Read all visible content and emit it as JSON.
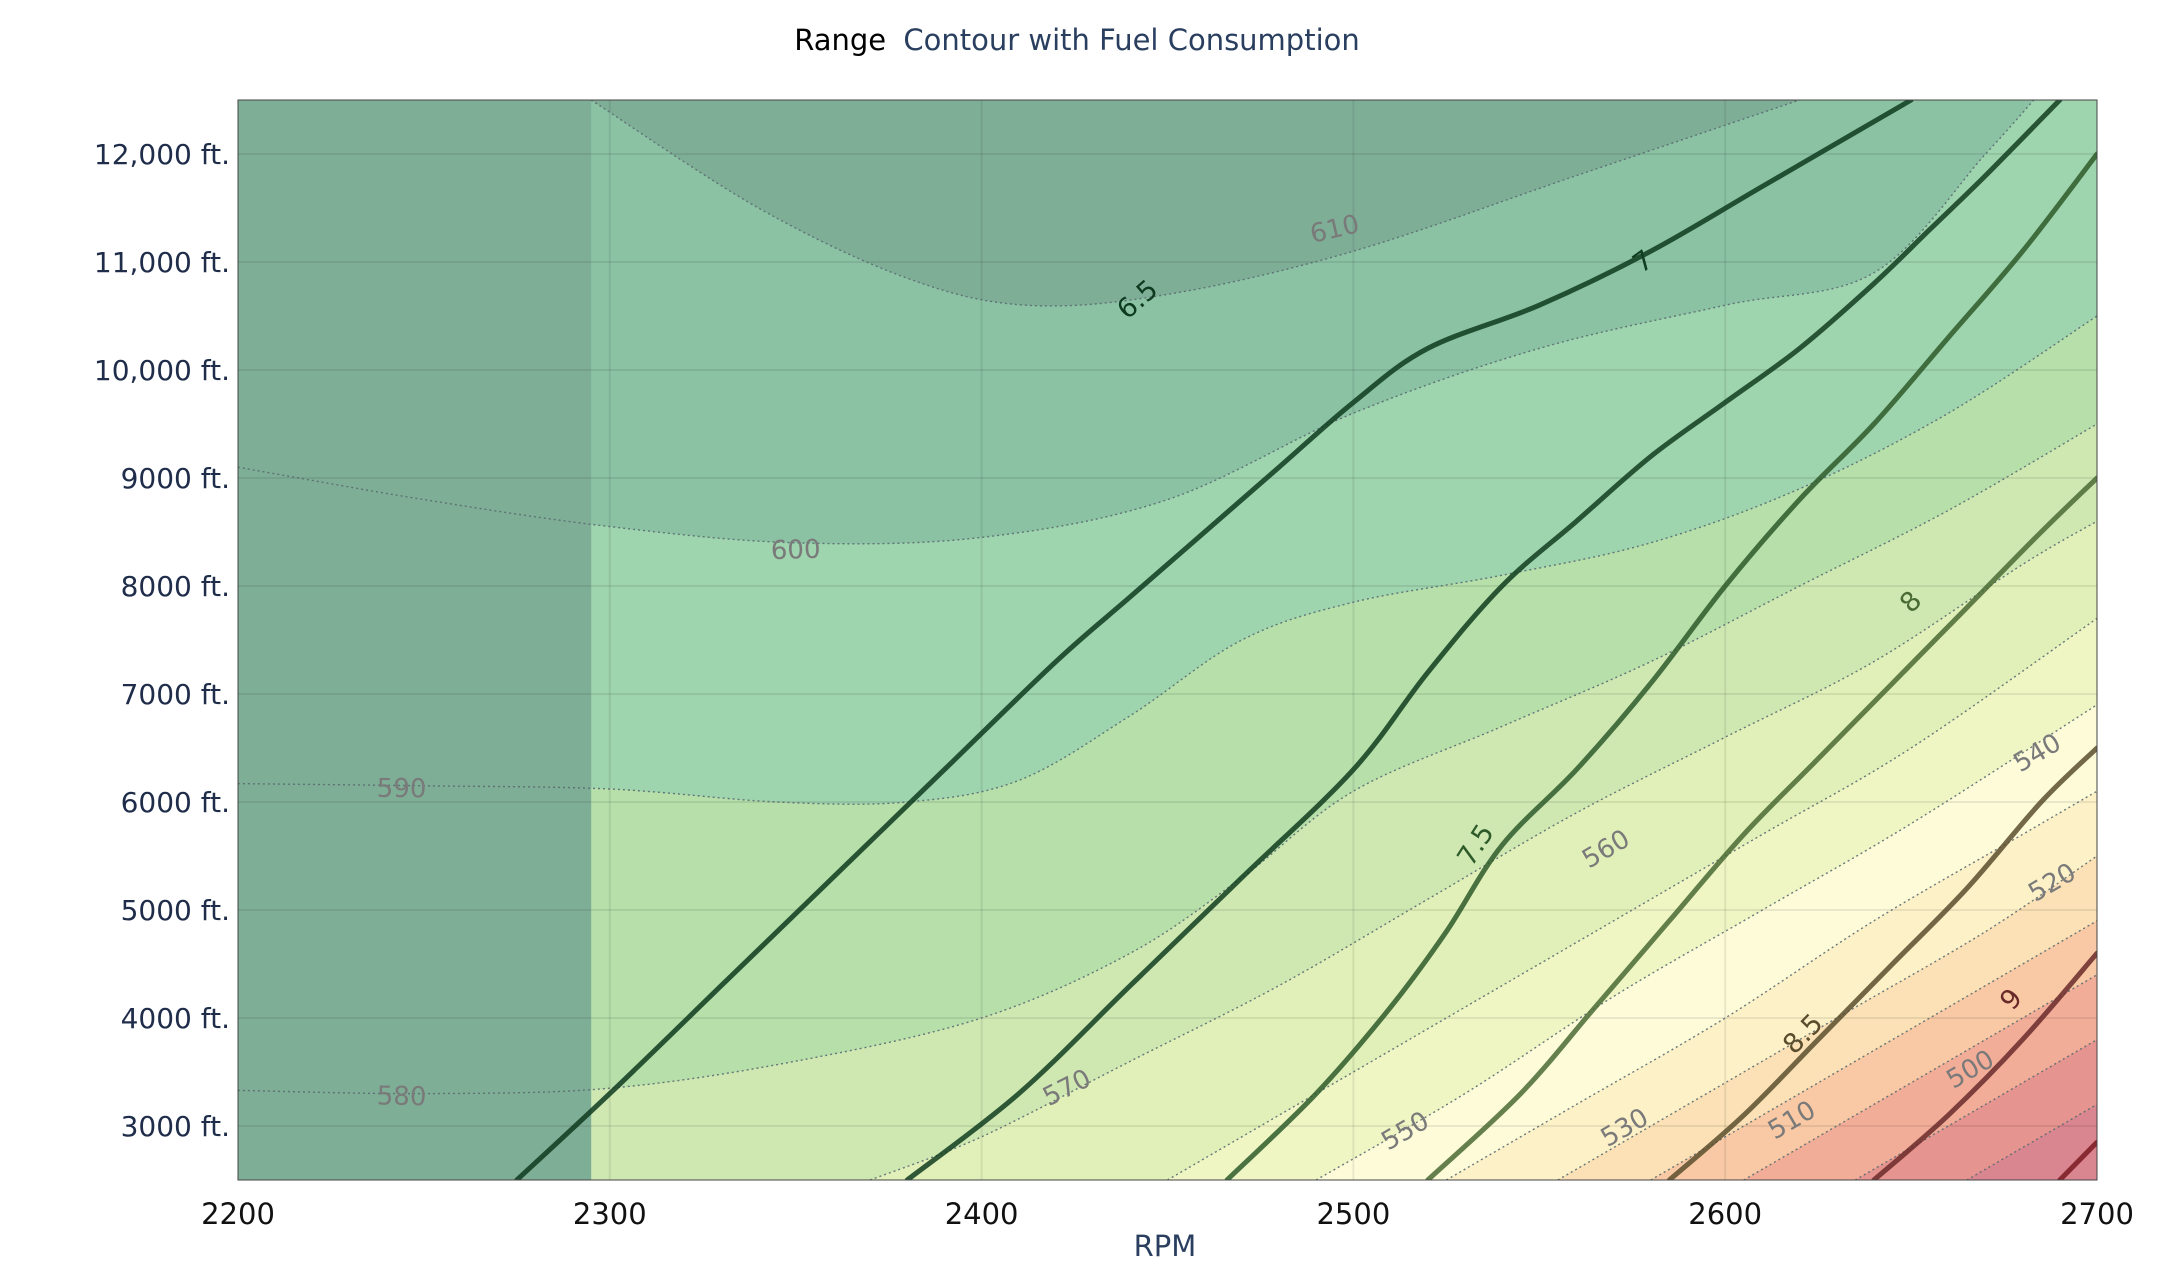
{
  "chart_data": {
    "type": "contour",
    "title": {
      "bold": "Range",
      "rest": "Contour with Fuel Consumption"
    },
    "xlabel": "RPM",
    "ylabel": "",
    "xlim": [
      2200,
      2700
    ],
    "ylim": [
      2500,
      12500
    ],
    "x_ticks": [
      {
        "value": 2200,
        "label": "2200"
      },
      {
        "value": 2300,
        "label": "2300"
      },
      {
        "value": 2400,
        "label": "2400"
      },
      {
        "value": 2500,
        "label": "2500"
      },
      {
        "value": 2600,
        "label": "2600"
      },
      {
        "value": 2700,
        "label": "2700"
      }
    ],
    "y_ticks": [
      {
        "value": 3000,
        "label": "3000 ft."
      },
      {
        "value": 4000,
        "label": "4000 ft."
      },
      {
        "value": 5000,
        "label": "5000 ft."
      },
      {
        "value": 6000,
        "label": "6000 ft."
      },
      {
        "value": 7000,
        "label": "7000 ft."
      },
      {
        "value": 8000,
        "label": "8000 ft."
      },
      {
        "value": 9000,
        "label": "9000 ft."
      },
      {
        "value": 10000,
        "label": "10,000 ft."
      },
      {
        "value": 11000,
        "label": "11,000 ft."
      },
      {
        "value": 12000,
        "label": "12,000 ft."
      }
    ],
    "grid": true,
    "range_contours": [
      {
        "level": 610,
        "label": "610",
        "label_at": [
          2495,
          11300
        ],
        "fill": "#7fae97",
        "points": [
          [
            2295,
            12500
          ],
          [
            2340,
            11500
          ],
          [
            2380,
            10850
          ],
          [
            2412,
            10600
          ],
          [
            2450,
            10700
          ],
          [
            2500,
            11100
          ],
          [
            2560,
            11800
          ],
          [
            2620,
            12500
          ]
        ]
      },
      {
        "level": 600,
        "label": "600",
        "label_at": [
          2350,
          8330
        ],
        "fill": "#8bc2a4",
        "points": [
          [
            2200,
            9100
          ],
          [
            2250,
            8800
          ],
          [
            2300,
            8550
          ],
          [
            2350,
            8400
          ],
          [
            2400,
            8450
          ],
          [
            2450,
            8800
          ],
          [
            2500,
            9600
          ],
          [
            2550,
            10200
          ],
          [
            2600,
            10600
          ],
          [
            2640,
            10900
          ],
          [
            2670,
            12000
          ],
          [
            2683,
            12500
          ]
        ]
      },
      {
        "level": 590,
        "label": "590",
        "label_at": [
          2244,
          6120
        ],
        "fill": "#9ed4ae",
        "points": [
          [
            2200,
            6170
          ],
          [
            2250,
            6150
          ],
          [
            2300,
            6120
          ],
          [
            2345,
            6000
          ],
          [
            2380,
            6000
          ],
          [
            2410,
            6200
          ],
          [
            2440,
            6800
          ],
          [
            2470,
            7500
          ],
          [
            2500,
            7850
          ],
          [
            2540,
            8100
          ],
          [
            2580,
            8400
          ],
          [
            2620,
            8900
          ],
          [
            2660,
            9600
          ],
          [
            2700,
            10500
          ]
        ]
      },
      {
        "level": 580,
        "label": "580",
        "label_at": [
          2244,
          3270
        ],
        "fill": "#b6dfaa",
        "points": [
          [
            2200,
            3330
          ],
          [
            2250,
            3300
          ],
          [
            2300,
            3350
          ],
          [
            2350,
            3600
          ],
          [
            2400,
            4000
          ],
          [
            2440,
            4600
          ],
          [
            2470,
            5300
          ],
          [
            2500,
            6100
          ],
          [
            2540,
            6700
          ],
          [
            2580,
            7300
          ],
          [
            2620,
            8000
          ],
          [
            2660,
            8700
          ],
          [
            2700,
            9500
          ]
        ]
      },
      {
        "level": 570,
        "label": "570",
        "label_at": [
          2423,
          3350
        ],
        "fill": "#cfe8b2",
        "points": [
          [
            2370,
            2500
          ],
          [
            2400,
            2900
          ],
          [
            2440,
            3600
          ],
          [
            2480,
            4300
          ],
          [
            2520,
            5100
          ],
          [
            2560,
            5900
          ],
          [
            2600,
            6600
          ],
          [
            2640,
            7300
          ],
          [
            2680,
            8200
          ],
          [
            2700,
            8600
          ]
        ]
      },
      {
        "level": 560,
        "label": "560",
        "label_at": [
          2568,
          5560
        ],
        "fill": "#e1f0b8",
        "points": [
          [
            2450,
            2500
          ],
          [
            2490,
            3300
          ],
          [
            2530,
            4100
          ],
          [
            2570,
            4900
          ],
          [
            2610,
            5700
          ],
          [
            2650,
            6500
          ],
          [
            2700,
            7700
          ]
        ]
      },
      {
        "level": 550,
        "label": "550",
        "label_at": [
          2514,
          2950
        ],
        "fill": "#eff6c4",
        "points": [
          [
            2490,
            2500
          ],
          [
            2530,
            3300
          ],
          [
            2570,
            4200
          ],
          [
            2610,
            5000
          ],
          [
            2650,
            5800
          ],
          [
            2700,
            6900
          ]
        ]
      },
      {
        "level": 540,
        "label": "540",
        "label_at": [
          2684,
          6450
        ],
        "fill": "#fdfbd8",
        "points": [
          [
            2525,
            2500
          ],
          [
            2560,
            3200
          ],
          [
            2600,
            4000
          ],
          [
            2640,
            4900
          ],
          [
            2680,
            5700
          ],
          [
            2700,
            6100
          ]
        ]
      },
      {
        "level": 530,
        "label": "530",
        "label_at": [
          2573,
          2980
        ],
        "fill": "#fdf1c8",
        "points": [
          [
            2555,
            2500
          ],
          [
            2590,
            3200
          ],
          [
            2630,
            4000
          ],
          [
            2670,
            4800
          ],
          [
            2700,
            5500
          ]
        ]
      },
      {
        "level": 520,
        "label": "520",
        "label_at": [
          2688,
          5250
        ],
        "fill": "#fbe1b5",
        "points": [
          [
            2580,
            2500
          ],
          [
            2620,
            3300
          ],
          [
            2660,
            4100
          ],
          [
            2700,
            4900
          ]
        ]
      },
      {
        "level": 510,
        "label": "510",
        "label_at": [
          2618,
          3050
        ],
        "fill": "#f8c9a4",
        "points": [
          [
            2605,
            2500
          ],
          [
            2640,
            3200
          ],
          [
            2680,
            4000
          ],
          [
            2700,
            4400
          ]
        ]
      },
      {
        "level": 500,
        "label": "500",
        "label_at": [
          2666,
          3520
        ],
        "fill": "#f2ad98",
        "points": [
          [
            2635,
            2500
          ],
          [
            2670,
            3200
          ],
          [
            2700,
            3800
          ]
        ]
      },
      {
        "level": 490,
        "label": "",
        "label_at": null,
        "fill": "#e6948f",
        "points": [
          [
            2665,
            2500
          ],
          [
            2700,
            3200
          ]
        ]
      }
    ],
    "range_base_fill": "#d98690",
    "fuel_lines": [
      {
        "value": 6.5,
        "label": "6.5",
        "label_at": [
          2442,
          10650
        ],
        "color": "#0e3b1f",
        "points": [
          [
            2275,
            2500
          ],
          [
            2300,
            3300
          ],
          [
            2330,
            4300
          ],
          [
            2360,
            5300
          ],
          [
            2390,
            6300
          ],
          [
            2420,
            7300
          ],
          [
            2440,
            7900
          ],
          [
            2460,
            8500
          ],
          [
            2480,
            9100
          ],
          [
            2500,
            9700
          ],
          [
            2520,
            10200
          ],
          [
            2550,
            10600
          ],
          [
            2580,
            11100
          ],
          [
            2610,
            11700
          ],
          [
            2640,
            12300
          ],
          [
            2650,
            12500
          ]
        ]
      },
      {
        "value": 7,
        "label": "7",
        "label_at": [
          2578,
          11000
        ],
        "color": "#103d1f",
        "points": [
          [
            2380,
            2500
          ],
          [
            2410,
            3300
          ],
          [
            2440,
            4300
          ],
          [
            2470,
            5300
          ],
          [
            2500,
            6300
          ],
          [
            2520,
            7200
          ],
          [
            2540,
            8000
          ],
          [
            2560,
            8600
          ],
          [
            2580,
            9200
          ],
          [
            2600,
            9700
          ],
          [
            2620,
            10200
          ],
          [
            2640,
            10800
          ],
          [
            2655,
            11300
          ],
          [
            2670,
            11800
          ],
          [
            2690,
            12500
          ]
        ]
      },
      {
        "value": 7.5,
        "label": "7.5",
        "label_at": [
          2533,
          5600
        ],
        "color": "#2e5a2a",
        "points": [
          [
            2466,
            2500
          ],
          [
            2490,
            3300
          ],
          [
            2510,
            4100
          ],
          [
            2525,
            4800
          ],
          [
            2540,
            5600
          ],
          [
            2560,
            6300
          ],
          [
            2580,
            7100
          ],
          [
            2600,
            8000
          ],
          [
            2620,
            8800
          ],
          [
            2640,
            9500
          ],
          [
            2660,
            10300
          ],
          [
            2680,
            11100
          ],
          [
            2700,
            12000
          ]
        ]
      },
      {
        "value": 8,
        "label": "8",
        "label_at": [
          2650,
          7850
        ],
        "color": "#4a6a34",
        "points": [
          [
            2520,
            2500
          ],
          [
            2545,
            3300
          ],
          [
            2565,
            4100
          ],
          [
            2585,
            4900
          ],
          [
            2605,
            5700
          ],
          [
            2625,
            6400
          ],
          [
            2645,
            7100
          ],
          [
            2665,
            7800
          ],
          [
            2685,
            8500
          ],
          [
            2700,
            9000
          ]
        ]
      },
      {
        "value": 8.5,
        "label": "8.5",
        "label_at": [
          2621,
          3850
        ],
        "color": "#5a4d2e",
        "points": [
          [
            2585,
            2500
          ],
          [
            2605,
            3100
          ],
          [
            2625,
            3800
          ],
          [
            2645,
            4500
          ],
          [
            2665,
            5200
          ],
          [
            2685,
            6000
          ],
          [
            2700,
            6500
          ]
        ]
      },
      {
        "value": 9,
        "label": "9",
        "label_at": [
          2677,
          4170
        ],
        "color": "#6a2a2a",
        "points": [
          [
            2640,
            2500
          ],
          [
            2660,
            3100
          ],
          [
            2680,
            3800
          ],
          [
            2700,
            4600
          ]
        ]
      },
      {
        "value": 9.5,
        "label": "",
        "label_at": null,
        "color": "#7a1a22",
        "points": [
          [
            2690,
            2500
          ],
          [
            2700,
            2850
          ]
        ]
      }
    ]
  }
}
